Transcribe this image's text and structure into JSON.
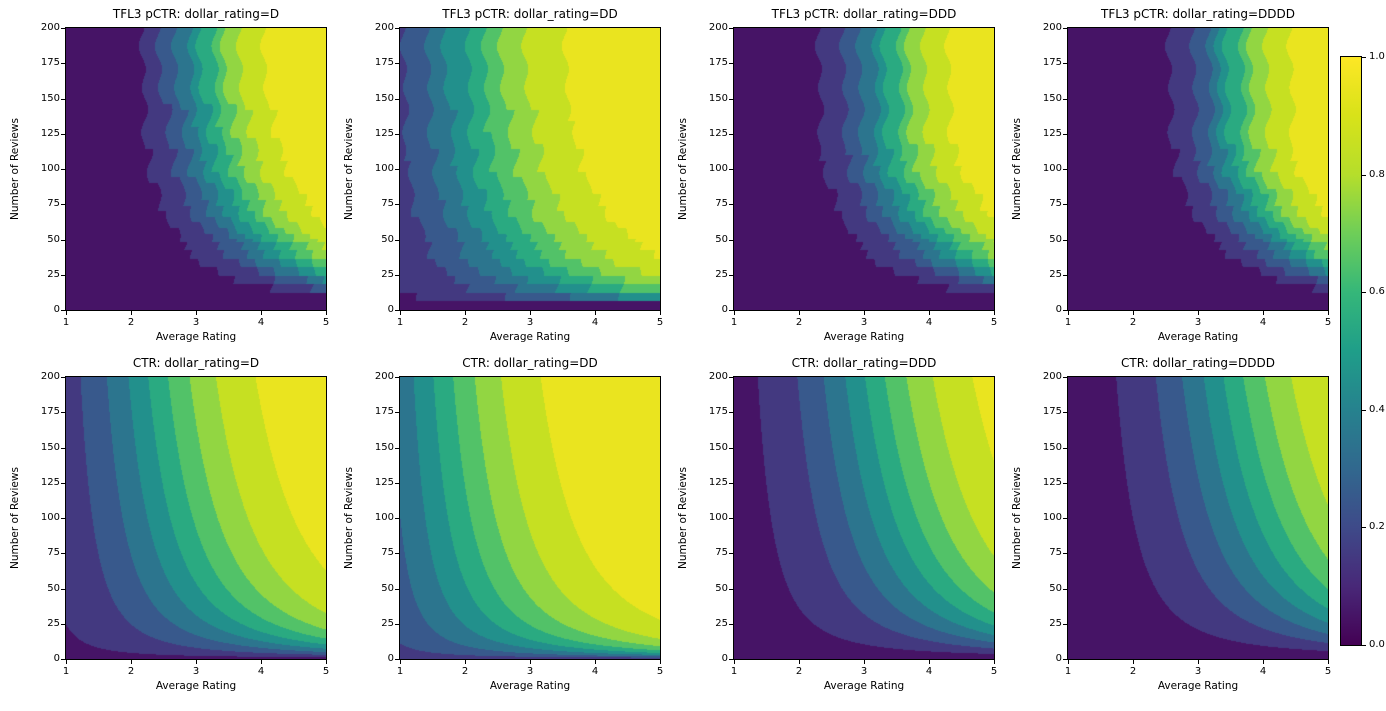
{
  "window": {
    "background": "#ffffff"
  },
  "chart_data": {
    "type": "heatmap",
    "subtype": "filled_contour_grid",
    "colormap": "viridis",
    "grid": {
      "rows": 2,
      "cols": 4
    },
    "levels": [
      0,
      0.1,
      0.2,
      0.3,
      0.4,
      0.5,
      0.6,
      0.7,
      0.8,
      0.9,
      1.0
    ],
    "x_axis": {
      "label": "Average Rating",
      "min": 1,
      "max": 5,
      "tick_labels": [
        "1",
        "2",
        "3",
        "4",
        "5"
      ]
    },
    "y_axis": {
      "label": "Number of Reviews",
      "min": 0,
      "max": 200,
      "tick_labels": [
        "0",
        "25",
        "50",
        "75",
        "100",
        "125",
        "150",
        "175",
        "200"
      ]
    },
    "colorbar": {
      "vmin": 0,
      "vmax": 1,
      "tick_labels": [
        "0.0",
        "0.2",
        "0.4",
        "0.6",
        "0.8",
        "1.0"
      ]
    },
    "field_formula": "value = 1 / (1 + exp(baseline - scale * avg_rating * log1p(min(num_reviews, review_saturation)) / 4))",
    "viridis_anchors": [
      "#440154",
      "#482878",
      "#3e4a89",
      "#31688e",
      "#26828e",
      "#1f9e89",
      "#35b779",
      "#6ece58",
      "#b5de2b",
      "#d8e219",
      "#fde725"
    ],
    "panels": [
      {
        "title": "TFL3 pCTR: dollar_rating=D",
        "row": 0,
        "col": 0,
        "dollar_rating": "D",
        "field": {
          "kind": "model",
          "baseline": 7.0,
          "scale": 1.8,
          "review_saturation": 150
        }
      },
      {
        "title": "TFL3 pCTR: dollar_rating=DD",
        "row": 0,
        "col": 1,
        "dollar_rating": "DD",
        "field": {
          "kind": "model",
          "baseline": 2.9,
          "scale": 1.15,
          "review_saturation": 150
        }
      },
      {
        "title": "TFL3 pCTR: dollar_rating=DDD",
        "row": 0,
        "col": 2,
        "dollar_rating": "DDD",
        "field": {
          "kind": "model",
          "baseline": 7.2,
          "scale": 1.8,
          "review_saturation": 120
        }
      },
      {
        "title": "TFL3 pCTR: dollar_rating=DDDD",
        "row": 0,
        "col": 3,
        "dollar_rating": "DDDD",
        "field": {
          "kind": "model",
          "baseline": 8.56,
          "scale": 2.04,
          "review_saturation": 120
        }
      },
      {
        "title": "CTR: dollar_rating=D",
        "row": 1,
        "col": 0,
        "dollar_rating": "D",
        "field": {
          "kind": "ground_truth",
          "baseline": 3.0,
          "scale": 1,
          "review_saturation": 100000
        }
      },
      {
        "title": "CTR: dollar_rating=DD",
        "row": 1,
        "col": 1,
        "dollar_rating": "DD",
        "field": {
          "kind": "ground_truth",
          "baseline": 2.0,
          "scale": 1,
          "review_saturation": 100000
        }
      },
      {
        "title": "CTR: dollar_rating=DDD",
        "row": 1,
        "col": 2,
        "dollar_rating": "DDD",
        "field": {
          "kind": "ground_truth",
          "baseline": 4.0,
          "scale": 1,
          "review_saturation": 100000
        }
      },
      {
        "title": "CTR: dollar_rating=DDDD",
        "row": 1,
        "col": 3,
        "dollar_rating": "DDDD",
        "field": {
          "kind": "ground_truth",
          "baseline": 4.5,
          "scale": 1,
          "review_saturation": 100000
        }
      }
    ]
  }
}
